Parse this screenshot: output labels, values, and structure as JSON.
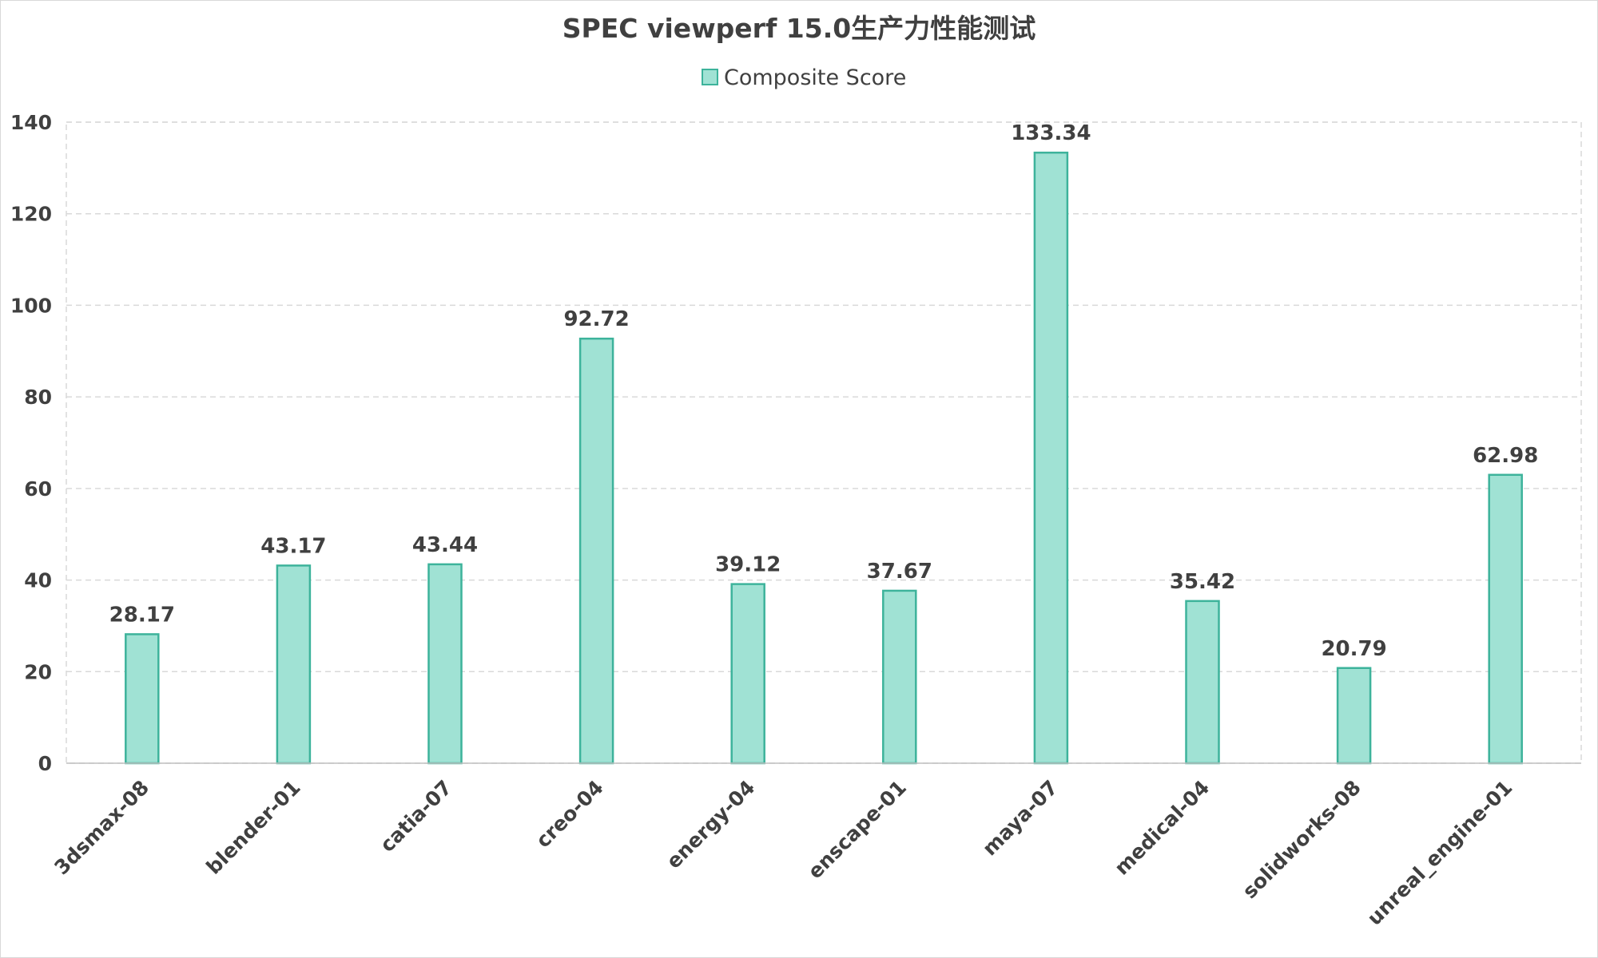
{
  "chart_data": {
    "type": "bar",
    "title": "SPEC viewperf 15.0生产力性能测试",
    "xlabel": "",
    "ylabel": "",
    "categories": [
      "3dsmax-08",
      "blender-01",
      "catia-07",
      "creo-04",
      "energy-04",
      "enscape-01",
      "maya-07",
      "medical-04",
      "solidworks-08",
      "unreal_engine-01"
    ],
    "series": [
      {
        "name": "Composite Score",
        "values": [
          28.17,
          43.17,
          43.44,
          92.72,
          39.12,
          37.67,
          133.34,
          35.42,
          20.79,
          62.98
        ],
        "labels": [
          "28.17",
          "43.17",
          "43.44",
          "92.72",
          "39.12",
          "37.67",
          "133.34",
          "35.42",
          "20.79",
          "62.98"
        ]
      }
    ],
    "ylim": [
      0,
      140
    ],
    "yticks": [
      0,
      20,
      40,
      60,
      80,
      100,
      120,
      140
    ],
    "grid": true,
    "legend_position": "top-center",
    "colors": {
      "bar_fill": "#a0e2d4",
      "bar_stroke": "#3db39b"
    }
  }
}
